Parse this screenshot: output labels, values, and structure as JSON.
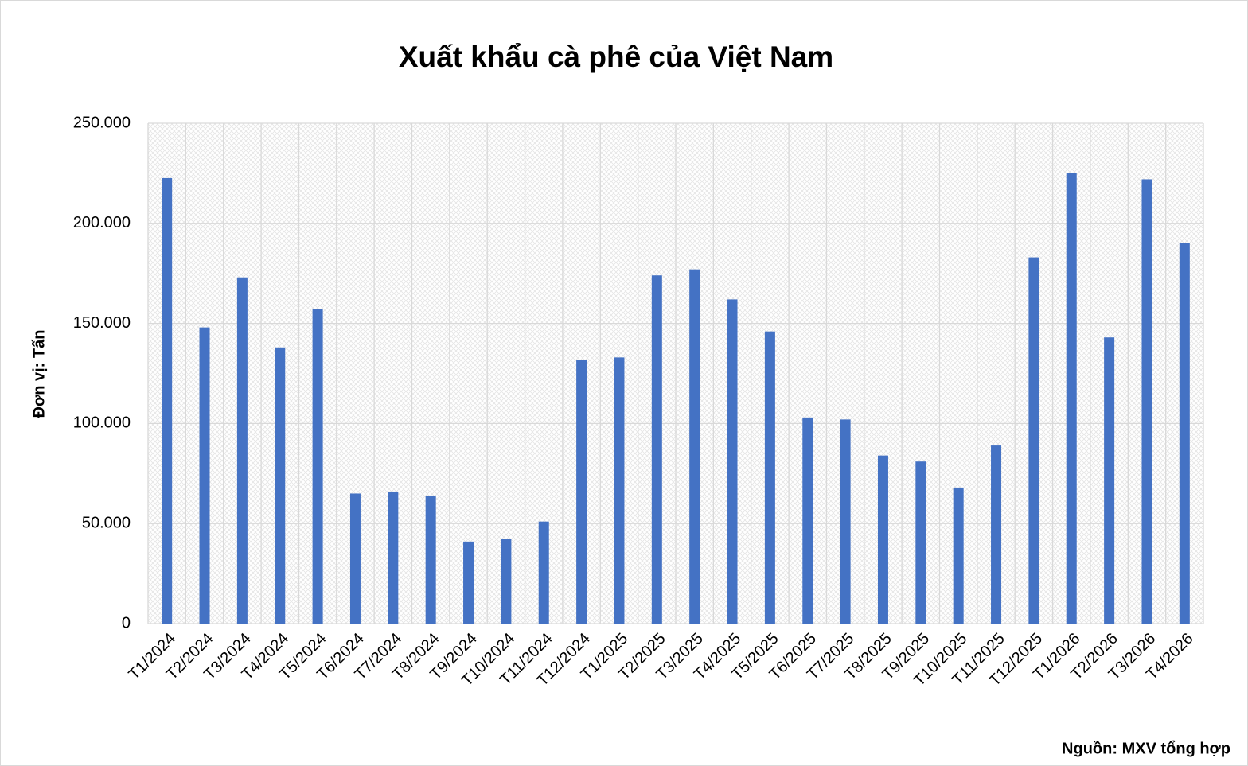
{
  "chart_data": {
    "type": "bar",
    "title": "Xuất khẩu cà phê của Việt Nam",
    "y_label": "Đơn vị: Tấn",
    "source": "Nguồn: MXV tổng hợp",
    "categories": [
      "T1/2024",
      "T2/2024",
      "T3/2024",
      "T4/2024",
      "T5/2024",
      "T6/2024",
      "T7/2024",
      "T8/2024",
      "T9/2024",
      "T10/2024",
      "T11/2024",
      "T12/2024",
      "T1/2025",
      "T2/2025",
      "T3/2025",
      "T4/2025",
      "T5/2025",
      "T6/2025",
      "T7/2025",
      "T8/2025",
      "T9/2025",
      "T10/2025",
      "T11/2025",
      "T12/2025",
      "T1/2026",
      "T2/2026",
      "T3/2026",
      "T4/2026"
    ],
    "values": [
      222600,
      148000,
      173000,
      138000,
      157000,
      65000,
      66000,
      64000,
      41000,
      42500,
      51000,
      131600,
      133000,
      174000,
      177000,
      162000,
      146000,
      103000,
      102000,
      84000,
      81000,
      68000,
      89000,
      183000,
      225000,
      143000,
      222000,
      190000
    ],
    "color": "#4472c4",
    "ylim": [
      0,
      250000
    ],
    "yticks": [
      0,
      {
        "value": 50000,
        "label": "50.000"
      },
      {
        "value": 100000,
        "label": "100.000"
      },
      {
        "value": 150000,
        "label": "150.000"
      },
      {
        "value": 200000,
        "label": "200.000"
      },
      {
        "value": 250000,
        "label": "250.000"
      }
    ],
    "grid": true
  }
}
